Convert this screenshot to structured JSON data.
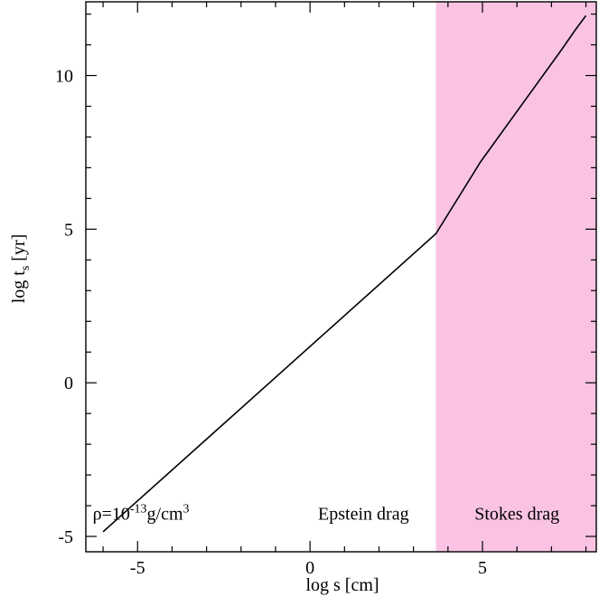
{
  "chart_data": {
    "type": "line",
    "title": "",
    "xlabel": "log s [cm]",
    "ylabel": {
      "main": "log t",
      "sub": "s",
      "unit": "[yr]"
    },
    "xlim": [
      -6.5,
      8.3
    ],
    "ylim": [
      -5.5,
      12.4
    ],
    "xticks": [
      -5,
      0,
      5
    ],
    "yticks": [
      -5,
      0,
      5,
      10
    ],
    "xtick_labels": [
      "-5",
      "0",
      "5"
    ],
    "ytick_labels": [
      "-5",
      "0",
      "5",
      "10"
    ],
    "x_minor_step": 1,
    "y_minor_step": 1,
    "grid": false,
    "series": [
      {
        "x": [
          -6.0,
          3.65,
          4.95,
          7.3,
          7.7,
          7.9,
          8.0
        ],
        "y": [
          -4.85,
          4.85,
          7.2,
          10.85,
          11.5,
          11.8,
          11.95
        ],
        "color": "#000000"
      }
    ],
    "shaded_region": {
      "x_start": 3.65,
      "x_end": 8.3,
      "color": "#fac3e4"
    },
    "annotations": [
      {
        "id": "density",
        "parts": {
          "prefix": "ρ=10",
          "exponent": "-13",
          "middle": "g/cm",
          "power": "3"
        },
        "x": -4.9,
        "y": -4.45
      },
      {
        "id": "epstein",
        "text": "Epstein drag",
        "x": 1.55,
        "y": -4.45
      },
      {
        "id": "stokes",
        "text": "Stokes drag",
        "x": 6.0,
        "y": -4.45
      }
    ]
  }
}
